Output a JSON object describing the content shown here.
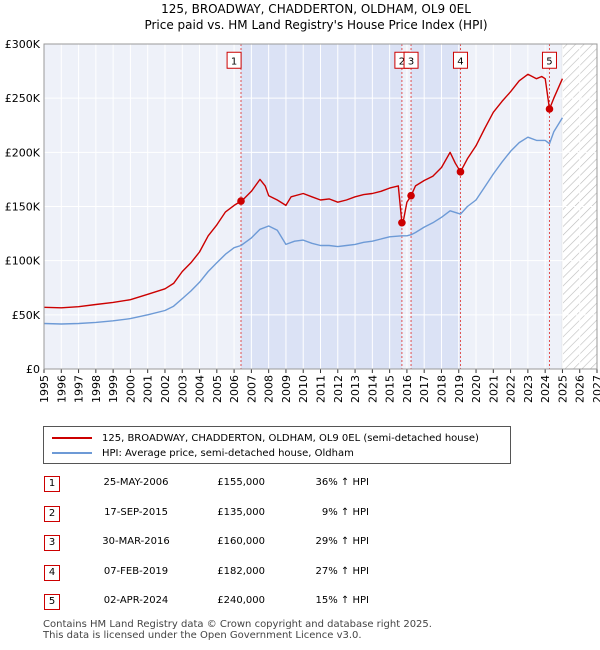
{
  "chart_data": {
    "type": "line",
    "title": "125, BROADWAY, CHADDERTON, OLDHAM, OL9 0EL",
    "subtitle": "Price paid vs. HM Land Registry's House Price Index (HPI)",
    "xlim": [
      1995,
      2027
    ],
    "ylim": [
      0,
      300000
    ],
    "y_ticks": [
      0,
      50000,
      100000,
      150000,
      200000,
      250000,
      300000
    ],
    "y_tick_labels": [
      "£0",
      "£50K",
      "£100K",
      "£150K",
      "£200K",
      "£250K",
      "£300K"
    ],
    "x_ticks": [
      1995,
      1996,
      1997,
      1998,
      1999,
      2000,
      2001,
      2002,
      2003,
      2004,
      2005,
      2006,
      2007,
      2008,
      2009,
      2010,
      2011,
      2012,
      2013,
      2014,
      2015,
      2016,
      2017,
      2018,
      2019,
      2020,
      2021,
      2022,
      2023,
      2024,
      2025,
      2026,
      2027
    ],
    "data_end_year": 2025.0,
    "series": [
      {
        "name": "125, BROADWAY, CHADDERTON, OLDHAM, OL9 0EL (semi-detached house)",
        "color": "#cc0000",
        "x": [
          1995.0,
          1996.0,
          1997.0,
          1998.0,
          1999.0,
          2000.0,
          2001.0,
          2002.0,
          2002.5,
          2003.0,
          2003.5,
          2004.0,
          2004.5,
          2005.0,
          2005.5,
          2006.0,
          2006.4,
          2006.5,
          2007.0,
          2007.5,
          2007.8,
          2008.0,
          2008.5,
          2009.0,
          2009.3,
          2010.0,
          2010.5,
          2011.0,
          2011.5,
          2012.0,
          2012.5,
          2013.0,
          2013.5,
          2014.0,
          2014.5,
          2015.0,
          2015.5,
          2015.71,
          2015.8,
          2016.0,
          2016.24,
          2016.5,
          2017.0,
          2017.5,
          2018.0,
          2018.5,
          2018.8,
          2019.1,
          2019.5,
          2020.0,
          2020.5,
          2021.0,
          2021.5,
          2022.0,
          2022.5,
          2023.0,
          2023.5,
          2023.8,
          2024.0,
          2024.25,
          2024.5,
          2025.0
        ],
        "values": [
          57000,
          56500,
          57500,
          59500,
          61500,
          64000,
          69000,
          74000,
          79000,
          90000,
          98000,
          108000,
          123000,
          133000,
          145000,
          151000,
          155000,
          156000,
          164000,
          175000,
          169000,
          160000,
          156000,
          151000,
          159000,
          162000,
          159000,
          156000,
          157000,
          154000,
          156000,
          159000,
          161000,
          162000,
          164000,
          167000,
          169000,
          135000,
          137000,
          154000,
          160000,
          169000,
          174000,
          178000,
          186000,
          200000,
          190000,
          182000,
          194000,
          206000,
          222000,
          237000,
          247000,
          256000,
          266000,
          272000,
          268000,
          270000,
          268000,
          240000,
          250000,
          268000
        ]
      },
      {
        "name": "HPI: Average price, semi-detached house, Oldham",
        "color": "#6d9ad6",
        "x": [
          1995.0,
          1996.0,
          1997.0,
          1998.0,
          1999.0,
          2000.0,
          2001.0,
          2002.0,
          2002.5,
          2003.0,
          2003.5,
          2004.0,
          2004.5,
          2005.0,
          2005.5,
          2006.0,
          2006.4,
          2007.0,
          2007.5,
          2008.0,
          2008.5,
          2009.0,
          2009.5,
          2010.0,
          2010.5,
          2011.0,
          2011.5,
          2012.0,
          2012.5,
          2013.0,
          2013.5,
          2014.0,
          2014.5,
          2015.0,
          2015.71,
          2016.0,
          2016.24,
          2016.5,
          2017.0,
          2017.5,
          2018.0,
          2018.5,
          2019.1,
          2019.5,
          2020.0,
          2020.5,
          2021.0,
          2021.5,
          2022.0,
          2022.5,
          2023.0,
          2023.5,
          2024.0,
          2024.25,
          2024.5,
          2025.0
        ],
        "values": [
          42000,
          41500,
          42000,
          43000,
          44500,
          46500,
          50000,
          54000,
          58000,
          65000,
          72000,
          80000,
          90000,
          98000,
          106000,
          112000,
          114000,
          121000,
          129000,
          132000,
          128000,
          115000,
          118000,
          119000,
          116000,
          114000,
          114000,
          113000,
          114000,
          115000,
          117000,
          118000,
          120000,
          122000,
          123000,
          123000,
          124000,
          126000,
          131000,
          135000,
          140000,
          146000,
          143000,
          150000,
          156000,
          168000,
          180000,
          191000,
          201000,
          209000,
          214000,
          211000,
          211000,
          208000,
          219000,
          232000
        ]
      }
    ],
    "transactions": [
      {
        "marker": "1",
        "x": 2006.4,
        "price": 155000,
        "label_x": 2006.0,
        "label_y": 285000
      },
      {
        "marker": "2",
        "x": 2015.71,
        "price": 135000,
        "label_x": 2015.71,
        "label_y": 285000
      },
      {
        "marker": "3",
        "x": 2016.24,
        "price": 160000,
        "label_x": 2016.24,
        "label_y": 285000
      },
      {
        "marker": "4",
        "x": 2019.1,
        "price": 182000,
        "label_x": 2019.1,
        "label_y": 285000
      },
      {
        "marker": "5",
        "x": 2024.25,
        "price": 240000,
        "label_x": 2024.25,
        "label_y": 285000
      }
    ],
    "shaded_ranges": [
      [
        2006.4,
        2015.71
      ],
      [
        2016.24,
        2019.1
      ]
    ]
  },
  "legend": {
    "items": [
      {
        "label": "125, BROADWAY, CHADDERTON, OLDHAM, OL9 0EL (semi-detached house)",
        "color": "#cc0000"
      },
      {
        "label": "HPI: Average price, semi-detached house, Oldham",
        "color": "#6d9ad6"
      }
    ]
  },
  "table": {
    "rows": [
      {
        "marker": "1",
        "date": "25-MAY-2006",
        "price": "£155,000",
        "hpi": "36% ↑ HPI"
      },
      {
        "marker": "2",
        "date": "17-SEP-2015",
        "price": "£135,000",
        "hpi": "9% ↑ HPI"
      },
      {
        "marker": "3",
        "date": "30-MAR-2016",
        "price": "£160,000",
        "hpi": "29% ↑ HPI"
      },
      {
        "marker": "4",
        "date": "07-FEB-2019",
        "price": "£182,000",
        "hpi": "27% ↑ HPI"
      },
      {
        "marker": "5",
        "date": "02-APR-2024",
        "price": "£240,000",
        "hpi": "15% ↑ HPI"
      }
    ]
  },
  "footer": {
    "line1": "Contains HM Land Registry data © Crown copyright and database right 2025.",
    "line2": "This data is licensed under the Open Government Licence v3.0."
  }
}
